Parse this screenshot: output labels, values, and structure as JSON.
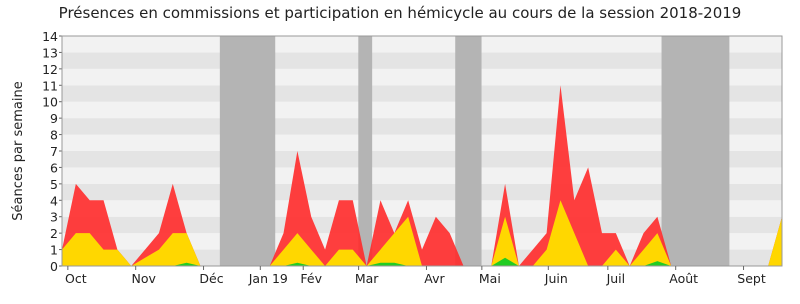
{
  "chart_data": {
    "type": "area",
    "title": "Présences en commissions et participation en hémicycle au cours de la session 2018-2019",
    "y_label": "Séances par semaine",
    "x": [
      0,
      1,
      2,
      3,
      4,
      5,
      6,
      7,
      8,
      9,
      10,
      11,
      12,
      13,
      14,
      15,
      16,
      17,
      18,
      19,
      20,
      21,
      22,
      23,
      24,
      25,
      26,
      27,
      28,
      29,
      30,
      31,
      32,
      33,
      34,
      35,
      36,
      37,
      38,
      39,
      40,
      41,
      42,
      43,
      44,
      45,
      46,
      47,
      48,
      49,
      50,
      51,
      52
    ],
    "xlim": [
      0,
      52
    ],
    "xticks": [
      {
        "value": 1,
        "label": "Oct"
      },
      {
        "value": 5.9,
        "label": "Nov"
      },
      {
        "value": 10.8,
        "label": "Déc"
      },
      {
        "value": 14.9,
        "label": "Jan 19"
      },
      {
        "value": 18,
        "label": "Fév"
      },
      {
        "value": 22,
        "label": "Mar"
      },
      {
        "value": 26.9,
        "label": "Avr"
      },
      {
        "value": 30.9,
        "label": "Mai"
      },
      {
        "value": 35.7,
        "label": "Juin"
      },
      {
        "value": 40,
        "label": "Juil"
      },
      {
        "value": 44.9,
        "label": "Août"
      },
      {
        "value": 49.8,
        "label": "Sept"
      }
    ],
    "ylim": [
      0,
      14
    ],
    "yticks": [
      0,
      1,
      2,
      3,
      4,
      5,
      6,
      7,
      8,
      9,
      10,
      11,
      12,
      13,
      14
    ],
    "shaded_spans": [
      [
        11.4,
        15.4
      ],
      [
        21.4,
        22.4
      ],
      [
        28.4,
        30.3
      ],
      [
        43.3,
        48.2
      ]
    ],
    "series": [
      {
        "color": "#ff2a2a",
        "values": [
          1,
          5,
          4,
          4,
          1,
          0,
          1,
          2,
          5,
          2,
          0,
          0,
          0,
          0,
          0,
          0,
          2,
          7,
          3,
          1,
          4,
          4,
          0,
          4,
          2,
          4,
          1,
          3,
          2,
          0,
          0,
          0,
          5,
          0,
          1,
          2,
          11,
          4,
          6,
          2,
          2,
          0,
          2,
          3,
          0,
          0,
          0,
          0,
          0,
          0,
          0,
          0,
          3
        ]
      },
      {
        "color": "#ffd700",
        "values": [
          1,
          2,
          2,
          1,
          1,
          0,
          0.5,
          1,
          2,
          2,
          0,
          0,
          0,
          0,
          0,
          0,
          1,
          2,
          1,
          0,
          1,
          1,
          0,
          1,
          2,
          3,
          0,
          0,
          0,
          0,
          0,
          0,
          3,
          0,
          0,
          1,
          4,
          2,
          0,
          0,
          1,
          0,
          1,
          2,
          0,
          0,
          0,
          0,
          0,
          0,
          0,
          0,
          3
        ]
      },
      {
        "color": "#22cc22",
        "values": [
          0,
          0,
          0,
          0,
          0,
          0,
          0,
          0,
          0,
          0.2,
          0,
          0,
          0,
          0,
          0,
          0,
          0,
          0.2,
          0,
          0,
          0,
          0,
          0,
          0.2,
          0.2,
          0,
          0,
          0,
          0,
          0,
          0,
          0,
          0.5,
          0,
          0,
          0,
          0,
          0,
          0,
          0,
          0,
          0,
          0,
          0.3,
          0,
          0,
          0,
          0,
          0,
          0,
          0,
          0,
          0
        ]
      }
    ]
  }
}
